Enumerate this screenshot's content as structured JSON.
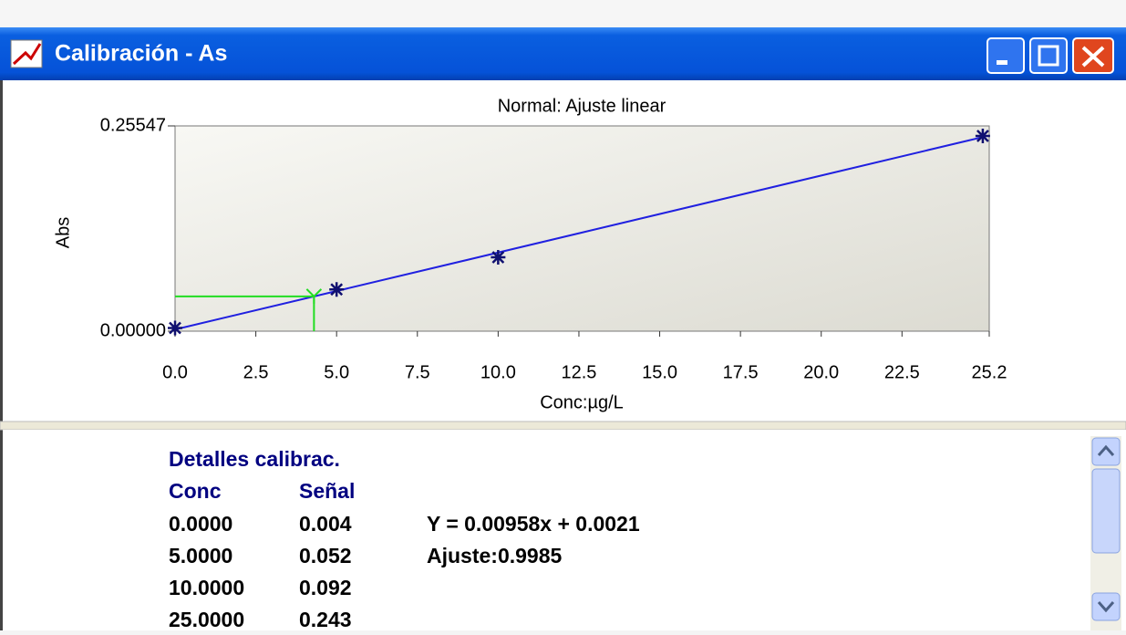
{
  "window": {
    "title": "Calibración - As"
  },
  "chart_data": {
    "type": "scatter",
    "title": "Normal: Ajuste linear",
    "x_label": "Conc:µg/L",
    "y_label": "Abs",
    "xlim": [
      0,
      25.2
    ],
    "ylim": [
      0,
      0.25547
    ],
    "xticks": [
      {
        "value": 0,
        "label": "0.0"
      },
      2.5,
      {
        "value": 5,
        "label": "5.0"
      },
      7.5,
      {
        "value": 10,
        "label": "10.0"
      },
      12.5,
      {
        "value": 15,
        "label": "15.0"
      },
      17.5,
      {
        "value": 20,
        "label": "20.0"
      },
      22.5,
      25.2
    ],
    "yticks": [
      {
        "value": 0,
        "label": "0.00000"
      },
      {
        "value": 0.25547,
        "label": "0.25547"
      }
    ],
    "series": [
      {
        "type": "line",
        "color": "#2020e0",
        "x": [
          0,
          25
        ],
        "values": [
          0.0021,
          0.2416
        ]
      },
      {
        "type": "scatter",
        "color": "#101070",
        "x": [
          0,
          5,
          10,
          25
        ],
        "values": [
          0.004,
          0.052,
          0.092,
          0.243
        ]
      },
      {
        "type": "sample",
        "color": "#22dd22",
        "x": [
          4.3
        ],
        "values": [
          0.0433
        ]
      }
    ]
  },
  "details": {
    "heading": "Detalles calibrac.",
    "columns": [
      "Conc",
      "Señal"
    ],
    "rows": [
      [
        "0.0000",
        "0.004"
      ],
      [
        "5.0000",
        "0.052"
      ],
      [
        "10.0000",
        "0.092"
      ],
      [
        "25.0000",
        "0.243"
      ]
    ],
    "equation": "Y = 0.00958x + 0.0021",
    "fit": "Ajuste:0.9985"
  }
}
